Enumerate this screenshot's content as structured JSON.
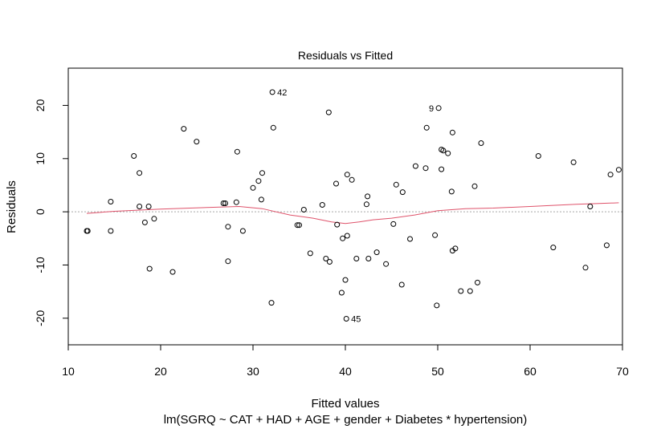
{
  "chart_data": {
    "type": "scatter",
    "title": "Residuals vs Fitted",
    "xlabel": "Fitted values",
    "ylabel": "Residuals",
    "subtitle": "lm(SGRQ ~ CAT + HAD + AGE + gender + Diabetes * hypertension)",
    "xlim": [
      10,
      70
    ],
    "ylim": [
      -25,
      27
    ],
    "xticks": [
      10,
      20,
      30,
      40,
      50,
      60,
      70
    ],
    "yticks": [
      -20,
      -10,
      0,
      10,
      20
    ],
    "reference_line": {
      "y": 0,
      "style": "dotted",
      "color": "#a9a9a9"
    },
    "smooth_color": "#df536b",
    "point_color": "#000000",
    "labeled_points": [
      {
        "label": "42",
        "x": 32.1,
        "y": 22.5
      },
      {
        "label": "9",
        "x": 50.1,
        "y": 19.5
      },
      {
        "label": "45",
        "x": 40.1,
        "y": -20.1
      }
    ],
    "points": [
      [
        12.0,
        -3.6
      ],
      [
        12.1,
        -3.6
      ],
      [
        14.6,
        1.9
      ],
      [
        14.6,
        -3.6
      ],
      [
        17.1,
        10.5
      ],
      [
        17.7,
        7.3
      ],
      [
        17.7,
        1.0
      ],
      [
        18.3,
        -2.0
      ],
      [
        18.7,
        1.0
      ],
      [
        18.8,
        -10.7
      ],
      [
        19.3,
        -1.3
      ],
      [
        21.3,
        -11.3
      ],
      [
        22.5,
        15.6
      ],
      [
        23.9,
        13.2
      ],
      [
        26.8,
        1.6
      ],
      [
        27.0,
        1.6
      ],
      [
        27.3,
        -2.8
      ],
      [
        27.3,
        -9.3
      ],
      [
        28.2,
        1.8
      ],
      [
        28.3,
        11.3
      ],
      [
        28.9,
        -3.6
      ],
      [
        30.0,
        4.5
      ],
      [
        30.6,
        5.8
      ],
      [
        30.9,
        2.3
      ],
      [
        31.0,
        7.3
      ],
      [
        32.0,
        -17.1
      ],
      [
        32.1,
        22.5
      ],
      [
        32.2,
        15.8
      ],
      [
        34.8,
        -2.5
      ],
      [
        35.0,
        -2.5
      ],
      [
        35.5,
        0.4
      ],
      [
        36.2,
        -7.8
      ],
      [
        37.5,
        1.3
      ],
      [
        37.9,
        -8.8
      ],
      [
        38.2,
        18.7
      ],
      [
        38.3,
        -9.4
      ],
      [
        39.0,
        5.3
      ],
      [
        39.1,
        -2.4
      ],
      [
        39.6,
        -15.2
      ],
      [
        39.7,
        -5.0
      ],
      [
        40.0,
        -12.8
      ],
      [
        40.1,
        -20.1
      ],
      [
        40.2,
        7.0
      ],
      [
        40.2,
        -4.5
      ],
      [
        40.7,
        6.0
      ],
      [
        41.2,
        -8.8
      ],
      [
        42.3,
        1.4
      ],
      [
        42.4,
        2.9
      ],
      [
        42.5,
        -8.8
      ],
      [
        43.4,
        -7.6
      ],
      [
        44.4,
        -9.8
      ],
      [
        45.2,
        -2.3
      ],
      [
        45.5,
        5.1
      ],
      [
        46.1,
        -13.7
      ],
      [
        46.2,
        3.7
      ],
      [
        47.0,
        -5.1
      ],
      [
        47.6,
        8.6
      ],
      [
        48.7,
        8.2
      ],
      [
        48.8,
        15.8
      ],
      [
        49.7,
        -4.4
      ],
      [
        49.9,
        -17.6
      ],
      [
        50.1,
        19.5
      ],
      [
        50.4,
        8.0
      ],
      [
        50.4,
        11.7
      ],
      [
        50.6,
        11.5
      ],
      [
        51.1,
        11.0
      ],
      [
        51.5,
        3.8
      ],
      [
        51.6,
        14.9
      ],
      [
        51.6,
        -7.3
      ],
      [
        51.9,
        -6.9
      ],
      [
        52.5,
        -14.9
      ],
      [
        53.5,
        -14.9
      ],
      [
        54.0,
        4.8
      ],
      [
        54.3,
        -13.3
      ],
      [
        54.7,
        12.9
      ],
      [
        60.9,
        10.5
      ],
      [
        62.5,
        -6.7
      ],
      [
        64.7,
        9.3
      ],
      [
        66.0,
        -10.5
      ],
      [
        66.5,
        1.0
      ],
      [
        68.3,
        -6.3
      ],
      [
        68.7,
        7.0
      ],
      [
        69.6,
        7.9
      ]
    ],
    "smooth": [
      [
        12.0,
        -0.3
      ],
      [
        15.0,
        0.1
      ],
      [
        20.0,
        0.5
      ],
      [
        25.0,
        0.8
      ],
      [
        28.5,
        1.0
      ],
      [
        31.0,
        0.6
      ],
      [
        34.0,
        -0.6
      ],
      [
        36.5,
        -1.2
      ],
      [
        38.5,
        -1.9
      ],
      [
        40.0,
        -2.2
      ],
      [
        41.5,
        -1.9
      ],
      [
        43.0,
        -1.5
      ],
      [
        45.0,
        -1.2
      ],
      [
        47.5,
        -0.6
      ],
      [
        50.0,
        0.2
      ],
      [
        53.0,
        0.6
      ],
      [
        56.0,
        0.7
      ],
      [
        60.0,
        1.0
      ],
      [
        65.0,
        1.4
      ],
      [
        69.6,
        1.7
      ]
    ]
  }
}
